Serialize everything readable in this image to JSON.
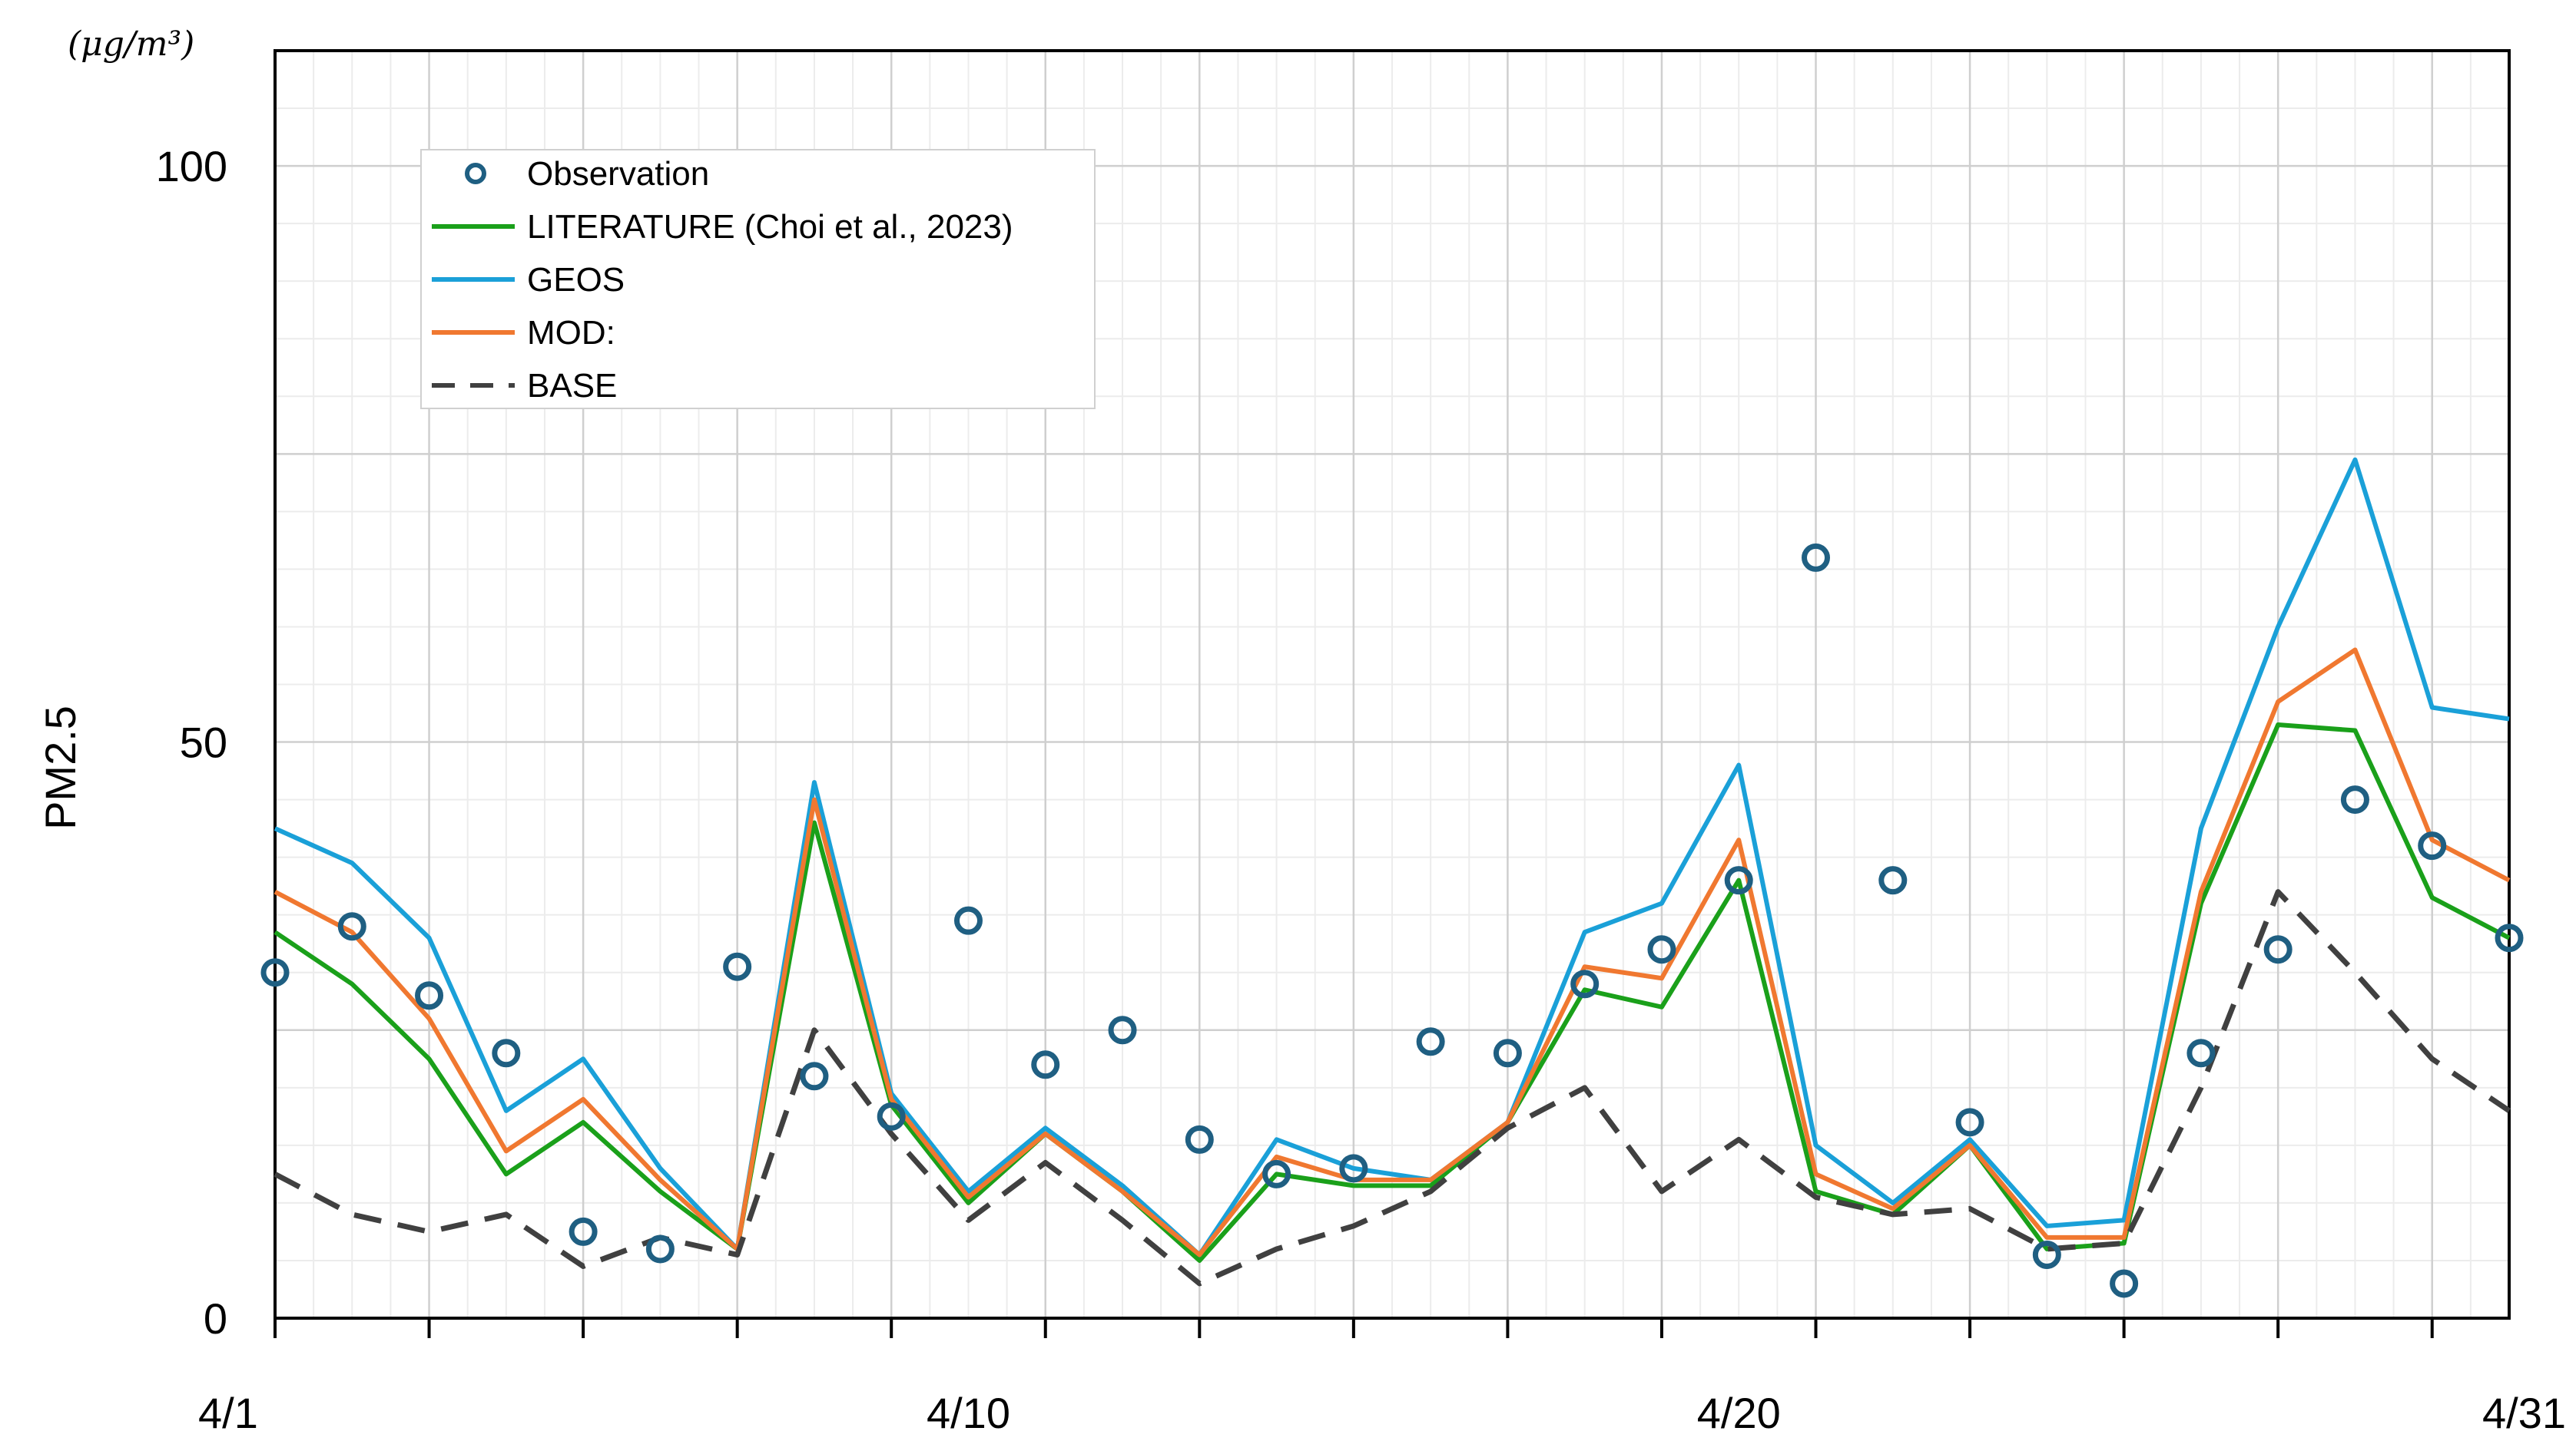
{
  "chart_data": {
    "type": "line",
    "title": "",
    "unit_label": "(μg/m³)",
    "ylabel": "PM2.5",
    "xlabel": "",
    "ylim": [
      0,
      110
    ],
    "yticks": [
      0,
      50,
      100
    ],
    "ytick_labels": [
      "0",
      "50",
      "100"
    ],
    "xlim": [
      1,
      30
    ],
    "xticks": [
      1,
      10,
      20,
      30
    ],
    "xtick_labels": [
      "4/1",
      "4/10",
      "4/20",
      "4/31"
    ],
    "grid": true,
    "legend_position": "top-left",
    "x": [
      1,
      2,
      3,
      4,
      5,
      6,
      7,
      8,
      9,
      10,
      11,
      12,
      13,
      14,
      15,
      16,
      17,
      18,
      19,
      20,
      21,
      22,
      23,
      24,
      25,
      26,
      27,
      28,
      29,
      30
    ],
    "series": [
      {
        "name": "Observation",
        "style": "markers",
        "color": "#1f5f82",
        "points": [
          [
            1,
            30
          ],
          [
            2,
            34
          ],
          [
            3,
            28
          ],
          [
            4,
            23
          ],
          [
            5,
            7.5
          ],
          [
            6,
            6
          ],
          [
            7,
            30.5
          ],
          [
            8,
            21
          ],
          [
            9,
            17.5
          ],
          [
            10,
            34.5
          ],
          [
            11,
            22
          ],
          [
            12,
            25
          ],
          [
            13,
            15.5
          ],
          [
            14,
            12.5
          ],
          [
            15,
            13
          ],
          [
            16,
            24
          ],
          [
            17,
            23
          ],
          [
            18,
            29
          ],
          [
            19,
            32
          ],
          [
            20,
            38
          ],
          [
            21,
            66
          ],
          [
            22,
            38
          ],
          [
            23,
            17
          ],
          [
            24,
            5.5
          ],
          [
            25,
            3
          ],
          [
            26,
            23
          ],
          [
            27,
            32
          ],
          [
            28,
            45
          ],
          [
            29,
            41
          ],
          [
            30,
            33
          ]
        ]
      },
      {
        "name": "LITERATURE (Choi et al., 2023)",
        "style": "solid",
        "color": "#1aa01a",
        "values": [
          33.5,
          29,
          22.5,
          12.5,
          17,
          11,
          6,
          43,
          18.5,
          10,
          16,
          11,
          5,
          12.5,
          11.5,
          11.5,
          17,
          28.5,
          27,
          38,
          11,
          9,
          15,
          6,
          6.5,
          36,
          51.5,
          51,
          36.5,
          33
        ]
      },
      {
        "name": "GEOS",
        "style": "solid",
        "color": "#1aa0d8",
        "values": [
          42.5,
          39.5,
          33,
          18,
          22.5,
          13,
          6,
          46.5,
          19.5,
          11,
          16.5,
          11.5,
          5.5,
          15.5,
          13,
          12,
          17,
          33.5,
          36,
          48,
          15,
          10,
          15.5,
          8,
          8.5,
          42.5,
          60,
          74.5,
          53,
          52
        ]
      },
      {
        "name": "MOD:",
        "style": "solid",
        "color": "#f07830",
        "values": [
          37,
          33.5,
          26,
          14.5,
          19,
          12,
          6,
          45,
          19,
          10.5,
          16,
          11,
          5.5,
          14,
          12,
          12,
          17,
          30.5,
          29.5,
          41.5,
          12.5,
          9.5,
          15,
          7,
          7,
          37,
          53.5,
          58,
          41.5,
          38
        ]
      },
      {
        "name": "BASE",
        "style": "dashed",
        "color": "#404040",
        "values": [
          12.5,
          9,
          7.5,
          9,
          4.5,
          7,
          5.5,
          25,
          16,
          8.5,
          13.5,
          8.5,
          3,
          6,
          8,
          11,
          16.5,
          20,
          11,
          15.5,
          10.5,
          9,
          9.5,
          6,
          6.5,
          20,
          37,
          30,
          22.5,
          18
        ]
      }
    ]
  }
}
